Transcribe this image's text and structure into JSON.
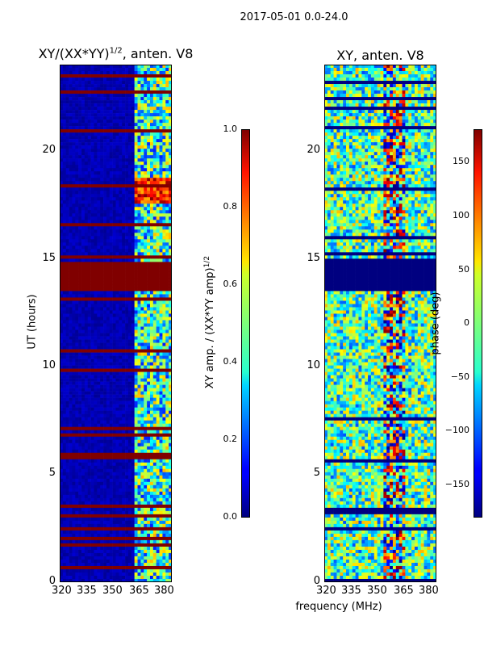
{
  "figure": {
    "suptitle": "2017-05-01 0.0-24.0",
    "xlabel": "frequency (MHz)"
  },
  "colors": {
    "masked": "#7f0000",
    "low": "#00007f",
    "colormap": "jet"
  },
  "chart_data": [
    {
      "type": "heatmap",
      "title": "XY/(XX*YY)^{1/2}, anten. V8",
      "title_main": "XY/(XX*YY)",
      "title_sup": "1/2",
      "title_tail": ", anten. V8",
      "xlabel": "",
      "ylabel": "UT (hours)",
      "xlim": [
        320,
        382
      ],
      "ylim": [
        0,
        24
      ],
      "xticks": [
        "320",
        "335",
        "350",
        "365",
        "380"
      ],
      "yticks": [
        "0",
        "5",
        "10",
        "15",
        "20"
      ],
      "masked_bands_hours": [
        [
          13.5,
          14.8
        ]
      ],
      "bright_band_hours": [
        17.5,
        18.8
      ],
      "colorbar": {
        "label": "XY amp. / (XX*YY amp)^{1/2}",
        "label_main": "XY amp. / (XX*YY amp)",
        "label_sup": "1/2",
        "range": [
          0.0,
          1.0
        ],
        "ticks": [
          "0.0",
          "0.2",
          "0.4",
          "0.6",
          "0.8",
          "1.0"
        ]
      }
    },
    {
      "type": "heatmap",
      "title": "XY, anten. V8",
      "xlabel": "frequency (MHz)",
      "ylabel": "",
      "xlim": [
        320,
        382
      ],
      "ylim": [
        0,
        24
      ],
      "xticks": [
        "320",
        "335",
        "350",
        "365",
        "380"
      ],
      "yticks": [
        "0",
        "5",
        "10",
        "15",
        "20"
      ],
      "masked_bands_hours": [
        [
          13.5,
          14.8
        ]
      ],
      "colorbar": {
        "label": "phase (deg)",
        "range": [
          -180,
          180
        ],
        "ticks": [
          "−150",
          "−100",
          "−50",
          "0",
          "50",
          "100",
          "150"
        ]
      }
    }
  ]
}
